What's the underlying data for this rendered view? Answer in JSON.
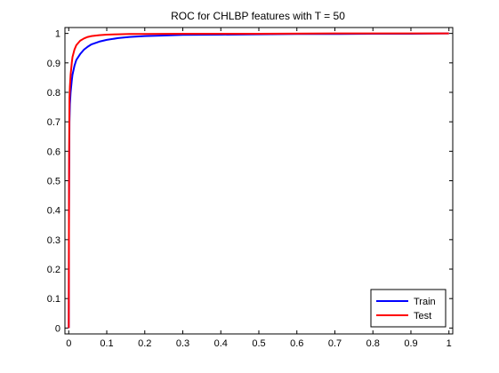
{
  "chart_data": {
    "type": "line",
    "title": "ROC for CHLBP features with T = 50",
    "xlabel": "",
    "ylabel": "",
    "xlim": [
      -0.01,
      1.01
    ],
    "ylim": [
      -0.02,
      1.02
    ],
    "x_ticks": [
      0,
      0.1,
      0.2,
      0.3,
      0.4,
      0.5,
      0.6,
      0.7,
      0.8,
      0.9,
      1
    ],
    "x_tick_labels": [
      "0",
      "0.1",
      "0.2",
      "0.3",
      "0.4",
      "0.5",
      "0.6",
      "0.7",
      "0.8",
      "0.9",
      "1"
    ],
    "y_ticks": [
      0,
      0.1,
      0.2,
      0.3,
      0.4,
      0.5,
      0.6,
      0.7,
      0.8,
      0.9,
      1
    ],
    "y_tick_labels": [
      "0",
      "0.1",
      "0.2",
      "0.3",
      "0.4",
      "0.5",
      "0.6",
      "0.7",
      "0.8",
      "0.9",
      "1"
    ],
    "grid": false,
    "legend_position": "bottom-right",
    "series": [
      {
        "name": "Train",
        "color": "#0000ff",
        "x": [
          0,
          0.0005,
          0.001,
          0.002,
          0.003,
          0.005,
          0.008,
          0.01,
          0.015,
          0.02,
          0.03,
          0.04,
          0.05,
          0.06,
          0.08,
          0.1,
          0.13,
          0.16,
          0.2,
          0.25,
          0.3,
          0.4,
          0.5,
          0.6,
          0.7,
          0.8,
          0.9,
          1
        ],
        "y": [
          0,
          0.32,
          0.5,
          0.7,
          0.76,
          0.8,
          0.84,
          0.86,
          0.89,
          0.91,
          0.93,
          0.945,
          0.955,
          0.963,
          0.972,
          0.978,
          0.984,
          0.988,
          0.991,
          0.993,
          0.995,
          0.996,
          0.997,
          0.998,
          0.998,
          0.999,
          0.999,
          1
        ]
      },
      {
        "name": "Test",
        "color": "#ff0000",
        "x": [
          0,
          0.0005,
          0.001,
          0.002,
          0.003,
          0.005,
          0.008,
          0.01,
          0.015,
          0.02,
          0.03,
          0.04,
          0.05,
          0.06,
          0.08,
          0.1,
          0.13,
          0.16,
          0.2,
          0.3,
          0.5,
          0.7,
          1
        ],
        "y": [
          0,
          0.35,
          0.6,
          0.78,
          0.82,
          0.86,
          0.9,
          0.92,
          0.945,
          0.96,
          0.975,
          0.983,
          0.988,
          0.991,
          0.994,
          0.996,
          0.997,
          0.998,
          0.998,
          0.999,
          0.999,
          1,
          1
        ]
      }
    ]
  }
}
